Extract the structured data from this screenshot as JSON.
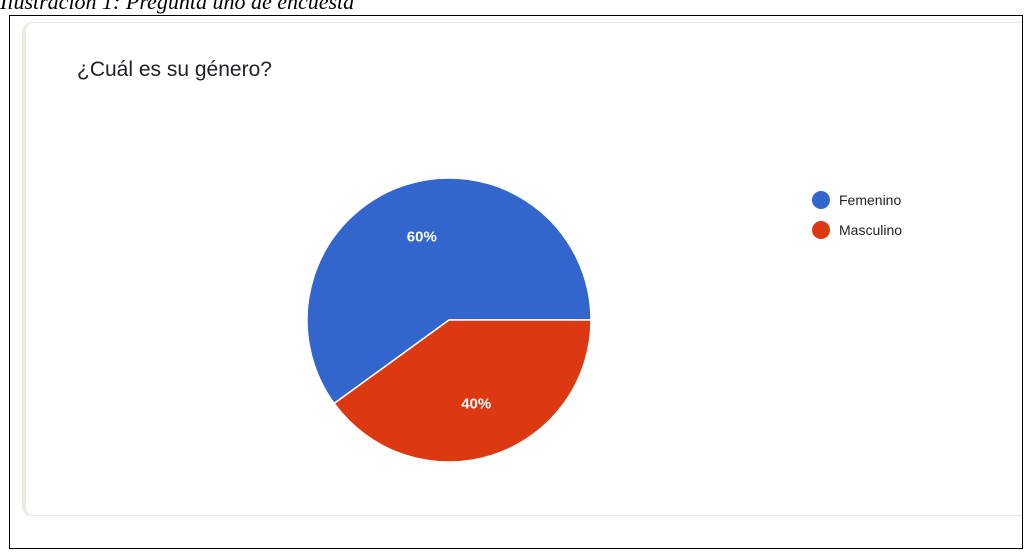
{
  "caption": "Ilustración 1: Pregunta uno de encuesta",
  "question": "¿Cuál es su género?",
  "colors": {
    "femenino": "#3366cc",
    "masculino": "#dc3912"
  },
  "chart_data": {
    "type": "pie",
    "title": "¿Cuál es su género?",
    "legend_position": "right",
    "slices": [
      {
        "label": "Femenino",
        "value": 60,
        "display": "60%",
        "color": "#3366cc"
      },
      {
        "label": "Masculino",
        "value": 40,
        "display": "40%",
        "color": "#dc3912"
      }
    ]
  }
}
